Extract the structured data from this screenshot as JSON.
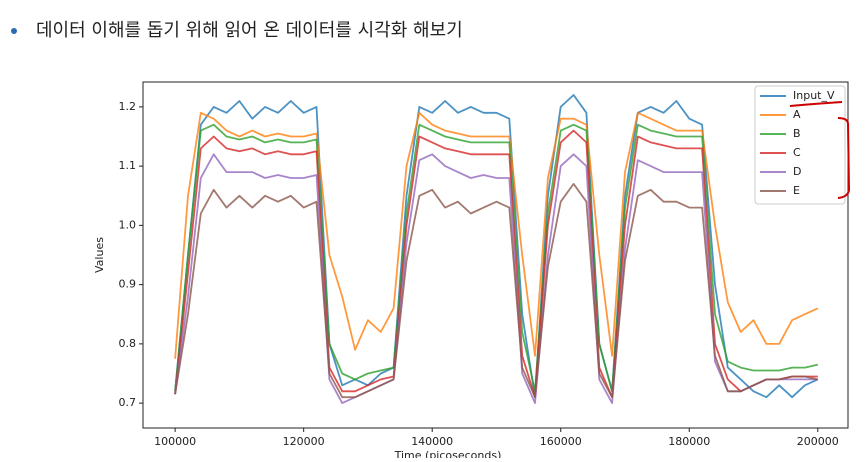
{
  "heading": "데이터 이해를 돕기 위해 읽어 온 데이터를 시각화 해보기",
  "chart_data": {
    "type": "line",
    "xlabel": "Time (picoseconds)",
    "ylabel": "Values",
    "x": [
      100000,
      102000,
      104000,
      106000,
      108000,
      110000,
      112000,
      114000,
      116000,
      118000,
      120000,
      122000,
      124000,
      126000,
      128000,
      130000,
      132000,
      134000,
      136000,
      138000,
      140000,
      142000,
      144000,
      146000,
      148000,
      150000,
      152000,
      154000,
      156000,
      158000,
      160000,
      162000,
      164000,
      166000,
      168000,
      170000,
      172000,
      174000,
      176000,
      178000,
      180000,
      182000,
      184000,
      186000,
      188000,
      190000,
      192000,
      194000,
      196000,
      198000,
      200000
    ],
    "xlim": [
      95000,
      204700
    ],
    "xticks": [
      100000,
      120000,
      140000,
      160000,
      180000,
      200000
    ],
    "ylim": [
      0.658,
      1.242
    ],
    "yticks": [
      0.7,
      0.8,
      0.9,
      {
        "value": 1,
        "label": "1.0"
      },
      1.1,
      1.2
    ],
    "legend": "upper right",
    "series": [
      {
        "name": "Input_V",
        "color": "#1f77b4",
        "values": [
          0.72,
          0.95,
          1.17,
          1.2,
          1.19,
          1.21,
          1.18,
          1.2,
          1.19,
          1.21,
          1.19,
          1.2,
          0.8,
          0.73,
          0.74,
          0.73,
          0.75,
          0.76,
          1.05,
          1.2,
          1.19,
          1.21,
          1.19,
          1.2,
          1.19,
          1.19,
          1.18,
          0.85,
          0.71,
          1.05,
          1.2,
          1.22,
          1.19,
          0.8,
          0.72,
          1.05,
          1.19,
          1.2,
          1.19,
          1.21,
          1.18,
          1.17,
          0.9,
          0.76,
          0.74,
          0.72,
          0.71,
          0.73,
          0.71,
          0.73,
          0.74
        ]
      },
      {
        "name": "A",
        "color": "#ff7f0e",
        "values": [
          0.775,
          1.05,
          1.19,
          1.18,
          1.16,
          1.15,
          1.16,
          1.15,
          1.155,
          1.15,
          1.15,
          1.155,
          0.95,
          0.88,
          0.79,
          0.84,
          0.82,
          0.86,
          1.1,
          1.19,
          1.17,
          1.16,
          1.155,
          1.15,
          1.15,
          1.15,
          1.15,
          0.95,
          0.78,
          1.08,
          1.18,
          1.18,
          1.17,
          0.95,
          0.78,
          1.09,
          1.19,
          1.18,
          1.17,
          1.16,
          1.16,
          1.16,
          1.0,
          0.87,
          0.82,
          0.84,
          0.8,
          0.8,
          0.84,
          0.85,
          0.86
        ]
      },
      {
        "name": "B",
        "color": "#2ca02c",
        "values": [
          0.72,
          0.95,
          1.16,
          1.17,
          1.15,
          1.145,
          1.15,
          1.14,
          1.145,
          1.14,
          1.14,
          1.145,
          0.8,
          0.75,
          0.74,
          0.75,
          0.755,
          0.76,
          1.02,
          1.17,
          1.16,
          1.15,
          1.145,
          1.14,
          1.14,
          1.14,
          1.14,
          0.82,
          0.72,
          1.02,
          1.16,
          1.17,
          1.16,
          0.8,
          0.72,
          1.03,
          1.17,
          1.16,
          1.155,
          1.15,
          1.15,
          1.15,
          0.85,
          0.77,
          0.76,
          0.755,
          0.755,
          0.755,
          0.76,
          0.76,
          0.765
        ]
      },
      {
        "name": "C",
        "color": "#d62728",
        "values": [
          0.715,
          0.92,
          1.13,
          1.15,
          1.13,
          1.125,
          1.13,
          1.12,
          1.125,
          1.12,
          1.12,
          1.125,
          0.76,
          0.72,
          0.72,
          0.73,
          0.74,
          0.745,
          1.0,
          1.15,
          1.14,
          1.13,
          1.125,
          1.12,
          1.12,
          1.12,
          1.12,
          0.78,
          0.71,
          1.0,
          1.14,
          1.16,
          1.14,
          0.76,
          0.71,
          1.0,
          1.15,
          1.14,
          1.135,
          1.13,
          1.13,
          1.13,
          0.8,
          0.74,
          0.72,
          0.73,
          0.74,
          0.74,
          0.745,
          0.745,
          0.745
        ]
      },
      {
        "name": "D",
        "color": "#9467bd",
        "values": [
          0.715,
          0.88,
          1.08,
          1.12,
          1.09,
          1.09,
          1.09,
          1.08,
          1.085,
          1.08,
          1.08,
          1.085,
          0.74,
          0.7,
          0.71,
          0.72,
          0.73,
          0.74,
          0.97,
          1.11,
          1.12,
          1.1,
          1.09,
          1.08,
          1.085,
          1.08,
          1.08,
          0.75,
          0.7,
          0.95,
          1.1,
          1.12,
          1.1,
          0.74,
          0.7,
          0.96,
          1.11,
          1.1,
          1.09,
          1.09,
          1.09,
          1.09,
          0.77,
          0.72,
          0.72,
          0.73,
          0.74,
          0.74,
          0.74,
          0.74,
          0.74
        ]
      },
      {
        "name": "E",
        "color": "#8c564b",
        "values": [
          0.715,
          0.85,
          1.02,
          1.06,
          1.03,
          1.05,
          1.03,
          1.05,
          1.04,
          1.05,
          1.03,
          1.04,
          0.75,
          0.71,
          0.71,
          0.72,
          0.73,
          0.74,
          0.94,
          1.05,
          1.06,
          1.03,
          1.04,
          1.02,
          1.03,
          1.04,
          1.03,
          0.76,
          0.71,
          0.93,
          1.04,
          1.07,
          1.04,
          0.75,
          0.71,
          0.94,
          1.05,
          1.06,
          1.04,
          1.04,
          1.03,
          1.03,
          0.78,
          0.72,
          0.72,
          0.73,
          0.74,
          0.74,
          0.745,
          0.745,
          0.74
        ]
      }
    ]
  }
}
